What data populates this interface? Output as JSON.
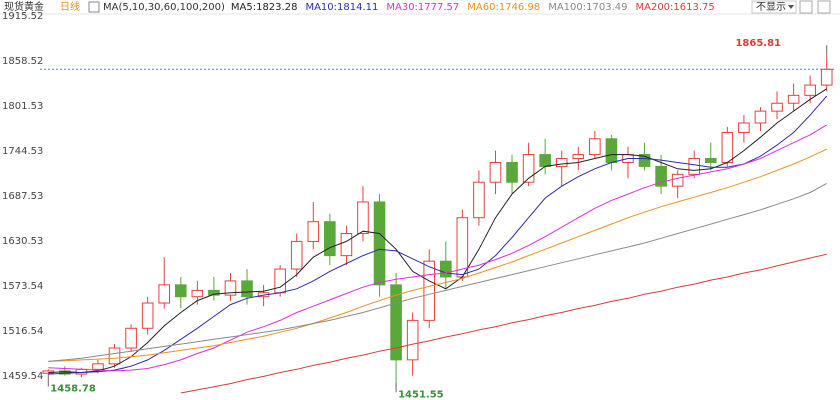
{
  "chart_data": {
    "type": "candlestick",
    "title": "现货黄金",
    "period": "日线",
    "ma_label": "MA(5,10,30,60,100,200)",
    "hide_button": "不显示",
    "up_color": "#e8413e",
    "down_color": "#5aa83a",
    "ylim": [
      1435.5,
      1919.3
    ],
    "yticks": [
      1459.54,
      1516.54,
      1573.54,
      1630.53,
      1687.53,
      1744.53,
      1801.53,
      1858.52,
      1915.52
    ],
    "ohlc": [
      [
        1463,
        1468,
        1458.78,
        1466
      ],
      [
        1466,
        1472,
        1460,
        1462
      ],
      [
        1462,
        1470,
        1458,
        1468
      ],
      [
        1468,
        1480,
        1463,
        1475
      ],
      [
        1475,
        1500,
        1470,
        1495
      ],
      [
        1495,
        1525,
        1490,
        1520
      ],
      [
        1520,
        1560,
        1512,
        1552
      ],
      [
        1552,
        1610,
        1545,
        1575
      ],
      [
        1575,
        1585,
        1545,
        1560
      ],
      [
        1560,
        1580,
        1550,
        1568
      ],
      [
        1568,
        1585,
        1555,
        1562
      ],
      [
        1562,
        1590,
        1555,
        1580
      ],
      [
        1580,
        1595,
        1550,
        1560
      ],
      [
        1560,
        1575,
        1548,
        1565
      ],
      [
        1565,
        1600,
        1560,
        1595
      ],
      [
        1595,
        1640,
        1585,
        1630
      ],
      [
        1630,
        1680,
        1620,
        1655
      ],
      [
        1655,
        1665,
        1600,
        1612
      ],
      [
        1612,
        1650,
        1600,
        1640
      ],
      [
        1640,
        1700,
        1630,
        1680
      ],
      [
        1680,
        1690,
        1560,
        1575
      ],
      [
        1575,
        1590,
        1451.55,
        1480
      ],
      [
        1480,
        1540,
        1460,
        1530
      ],
      [
        1530,
        1620,
        1520,
        1605
      ],
      [
        1605,
        1630,
        1570,
        1585
      ],
      [
        1585,
        1670,
        1580,
        1660
      ],
      [
        1660,
        1720,
        1650,
        1705
      ],
      [
        1705,
        1745,
        1690,
        1730
      ],
      [
        1730,
        1740,
        1690,
        1705
      ],
      [
        1705,
        1755,
        1700,
        1740
      ],
      [
        1740,
        1760,
        1715,
        1725
      ],
      [
        1725,
        1745,
        1700,
        1735
      ],
      [
        1735,
        1750,
        1720,
        1740
      ],
      [
        1740,
        1770,
        1735,
        1760
      ],
      [
        1760,
        1765,
        1720,
        1730
      ],
      [
        1730,
        1750,
        1710,
        1740
      ],
      [
        1740,
        1755,
        1720,
        1725
      ],
      [
        1725,
        1740,
        1690,
        1700
      ],
      [
        1700,
        1720,
        1685,
        1715
      ],
      [
        1715,
        1745,
        1710,
        1735
      ],
      [
        1735,
        1755,
        1720,
        1730
      ],
      [
        1730,
        1775,
        1725,
        1768
      ],
      [
        1768,
        1790,
        1755,
        1780
      ],
      [
        1780,
        1800,
        1770,
        1795
      ],
      [
        1795,
        1820,
        1785,
        1805
      ],
      [
        1805,
        1830,
        1795,
        1815
      ],
      [
        1815,
        1840,
        1805,
        1828
      ],
      [
        1828,
        1865.81,
        1820,
        1848
      ]
    ],
    "series": [
      {
        "name": "MA5:1823.28",
        "color": "#222222",
        "values": [
          1464,
          1465,
          1464,
          1466,
          1472,
          1484,
          1502,
          1523,
          1540,
          1555,
          1563,
          1565,
          1566,
          1567,
          1572,
          1588,
          1610,
          1622,
          1630,
          1643,
          1640,
          1620,
          1592,
          1580,
          1570,
          1585,
          1620,
          1660,
          1690,
          1710,
          1725,
          1728,
          1730,
          1735,
          1740,
          1740,
          1738,
          1730,
          1722,
          1720,
          1722,
          1730,
          1745,
          1762,
          1780,
          1795,
          1810,
          1823.28
        ]
      },
      {
        "name": "MA10:1814.11",
        "color": "#2b2bb0",
        "values": [
          1462,
          1463,
          1464,
          1465,
          1467,
          1472,
          1480,
          1492,
          1506,
          1520,
          1535,
          1550,
          1558,
          1562,
          1565,
          1570,
          1580,
          1592,
          1602,
          1612,
          1620,
          1618,
          1608,
          1598,
          1590,
          1588,
          1595,
          1612,
          1635,
          1660,
          1685,
          1700,
          1712,
          1722,
          1730,
          1735,
          1735,
          1733,
          1730,
          1727,
          1724,
          1724,
          1728,
          1738,
          1752,
          1768,
          1790,
          1814.11
        ]
      },
      {
        "name": "MA30:1777.57",
        "color": "#e02ce0",
        "values": [
          1470,
          1469,
          1468,
          1467,
          1466,
          1467,
          1469,
          1474,
          1480,
          1488,
          1495,
          1505,
          1515,
          1522,
          1530,
          1540,
          1548,
          1556,
          1564,
          1572,
          1578,
          1582,
          1585,
          1588,
          1590,
          1595,
          1600,
          1607,
          1615,
          1625,
          1636,
          1648,
          1660,
          1672,
          1682,
          1690,
          1698,
          1705,
          1710,
          1714,
          1718,
          1722,
          1728,
          1735,
          1745,
          1755,
          1765,
          1777.57
        ]
      },
      {
        "name": "MA60:1746.98",
        "color": "#f0901e",
        "values": [
          1478,
          1479,
          1480,
          1481,
          1482,
          1484,
          1486,
          1489,
          1492,
          1495,
          1498,
          1502,
          1506,
          1510,
          1515,
          1520,
          1526,
          1533,
          1540,
          1548,
          1555,
          1562,
          1568,
          1573,
          1578,
          1583,
          1590,
          1597,
          1604,
          1612,
          1620,
          1628,
          1636,
          1644,
          1652,
          1660,
          1667,
          1674,
          1680,
          1686,
          1692,
          1698,
          1705,
          1712,
          1720,
          1728,
          1737,
          1746.98
        ]
      },
      {
        "name": "MA100:1703.49",
        "color": "#8a8a8a",
        "values": [
          1478,
          1480,
          1482,
          1485,
          1488,
          1491,
          1494,
          1497,
          1500,
          1503,
          1506,
          1509,
          1512,
          1515,
          1518,
          1522,
          1526,
          1530,
          1535,
          1540,
          1546,
          1552,
          1558,
          1563,
          1568,
          1573,
          1578,
          1583,
          1588,
          1593,
          1598,
          1603,
          1608,
          1613,
          1618,
          1623,
          1628,
          1634,
          1640,
          1646,
          1652,
          1658,
          1664,
          1670,
          1677,
          1684,
          1692,
          1703.49
        ]
      },
      {
        "name": "MA200:1613.75",
        "color": "#d83c3c",
        "values": [
          null,
          null,
          null,
          null,
          null,
          null,
          null,
          null,
          1438,
          1442,
          1446,
          1450,
          1455,
          1459,
          1464,
          1468,
          1473,
          1477,
          1482,
          1486,
          1491,
          1495,
          1500,
          1504,
          1509,
          1513,
          1518,
          1522,
          1527,
          1531,
          1536,
          1540,
          1545,
          1549,
          1554,
          1558,
          1563,
          1567,
          1572,
          1576,
          1581,
          1585,
          1590,
          1594,
          1599,
          1604,
          1609,
          1613.75
        ]
      }
    ]
  }
}
